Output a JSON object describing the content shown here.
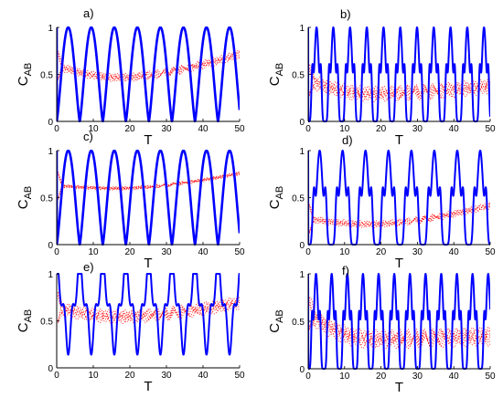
{
  "chart_data": [
    {
      "type": "line",
      "label": "a)",
      "xlabel": "T",
      "ylabel": "C",
      "ylabel_sub": "AB",
      "xlim": [
        0,
        50
      ],
      "ylim": [
        0,
        1
      ],
      "xticks": [
        "0",
        "10",
        "20",
        "30",
        "40",
        "50"
      ],
      "yticks": [
        "0",
        "0.5",
        "1"
      ],
      "blue_shape": "smooth",
      "blue_period": 6.3,
      "red_start": 0.6,
      "red_min": 0.47,
      "red_end": 0.72,
      "red_band": 0.05,
      "colors": {
        "blue": "#0000ff",
        "red": "#ff0000"
      }
    },
    {
      "type": "line",
      "label": "b)",
      "xlabel": "T",
      "ylabel": "C",
      "ylabel_sub": "AB",
      "xlim": [
        0,
        50
      ],
      "ylim": [
        0,
        1
      ],
      "xticks": [
        "0",
        "10",
        "20",
        "30",
        "40",
        "50"
      ],
      "yticks": [
        "0",
        "0.5",
        "1"
      ],
      "blue_shape": "spiky",
      "blue_period": 4.6,
      "red_start": 0.45,
      "red_min": 0.3,
      "red_end": 0.38,
      "red_band": 0.09,
      "colors": {
        "blue": "#0000ff",
        "red": "#ff0000"
      }
    },
    {
      "type": "line",
      "label": "c)",
      "xlabel": "T",
      "ylabel": "C",
      "ylabel_sub": "AB",
      "xlim": [
        0,
        50
      ],
      "ylim": [
        0,
        1
      ],
      "xticks": [
        "0",
        "10",
        "20",
        "30",
        "40",
        "50"
      ],
      "yticks": [
        "0",
        "0.5",
        "1"
      ],
      "blue_shape": "smooth",
      "blue_period": 6.3,
      "red_start": 0.63,
      "red_min": 0.6,
      "red_end": 0.76,
      "red_band": 0.02,
      "colors": {
        "blue": "#0000ff",
        "red": "#ff0000"
      }
    },
    {
      "type": "line",
      "label": "d)",
      "xlabel": "T",
      "ylabel": "C",
      "ylabel_sub": "AB",
      "xlim": [
        0,
        50
      ],
      "ylim": [
        0,
        1
      ],
      "xticks": [
        "0",
        "10",
        "20",
        "30",
        "40",
        "50"
      ],
      "yticks": [
        "0",
        "0.5",
        "1"
      ],
      "blue_shape": "spiky",
      "blue_period": 6.3,
      "red_start": 0.28,
      "red_min": 0.22,
      "red_end": 0.42,
      "red_band": 0.04,
      "colors": {
        "blue": "#0000ff",
        "red": "#ff0000"
      }
    },
    {
      "type": "line",
      "label": "e)",
      "xlabel": "T",
      "ylabel": "C",
      "ylabel_sub": "AB",
      "xlim": [
        0,
        50
      ],
      "ylim": [
        0,
        1
      ],
      "xticks": [
        "0",
        "10",
        "20",
        "30",
        "40",
        "50"
      ],
      "yticks": [
        "0",
        "0.5",
        "1"
      ],
      "blue_shape": "double",
      "blue_period": 6.3,
      "red_start": 0.65,
      "red_min": 0.55,
      "red_end": 0.7,
      "red_band": 0.08,
      "colors": {
        "blue": "#0000ff",
        "red": "#ff0000"
      }
    },
    {
      "type": "line",
      "label": "f)",
      "xlabel": "T",
      "ylabel": "C",
      "ylabel_sub": "AB",
      "xlim": [
        0,
        50
      ],
      "ylim": [
        0,
        1
      ],
      "xticks": [
        "0",
        "10",
        "20",
        "30",
        "40",
        "50"
      ],
      "yticks": [
        "0",
        "0.5",
        "1"
      ],
      "blue_shape": "spiky",
      "blue_period": 4.3,
      "red_start": 0.6,
      "red_min": 0.32,
      "red_end": 0.35,
      "red_band": 0.11,
      "colors": {
        "blue": "#0000ff",
        "red": "#ff0000"
      }
    }
  ]
}
